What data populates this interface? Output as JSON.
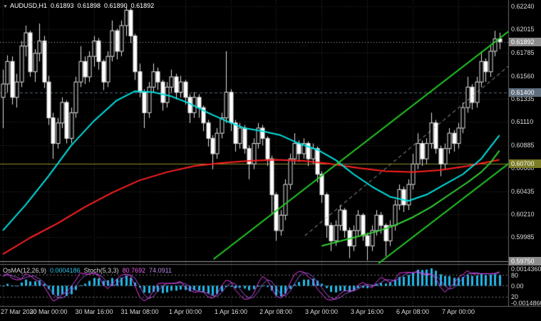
{
  "header": {
    "symbol": "AUDUSD,H1",
    "open": "0.61893",
    "high": "0.61898",
    "low": "0.61890",
    "close": "0.61892"
  },
  "indicator_header": {
    "osma_label": "OsMA(12,26,9)",
    "osma_value": "0.0004186",
    "stoch_label": "Stoch(5,3,3)",
    "stoch_k": "80.7692",
    "stoch_d": "74.0911"
  },
  "price_axis": {
    "ticks": [
      {
        "label": "0.62240",
        "price": 0.6224
      },
      {
        "label": "0.62015",
        "price": 0.62015
      },
      {
        "label": "0.61785",
        "price": 0.61785
      },
      {
        "label": "0.61560",
        "price": 0.6156
      },
      {
        "label": "0.61335",
        "price": 0.61335
      },
      {
        "label": "0.61110",
        "price": 0.6111
      },
      {
        "label": "0.60885",
        "price": 0.60885
      },
      {
        "label": "0.60660",
        "price": 0.6066
      },
      {
        "label": "0.60435",
        "price": 0.60435
      },
      {
        "label": "0.60210",
        "price": 0.6021
      },
      {
        "label": "0.59985",
        "price": 0.59985
      }
    ],
    "badges": [
      {
        "label": "0.61892",
        "price": 0.61892,
        "bg": "#8c8c8c"
      },
      {
        "label": "0.61400",
        "price": 0.614,
        "bg": "#5f6f7f"
      },
      {
        "label": "0.60700",
        "price": 0.607,
        "bg": "#7d7d28"
      },
      {
        "label": "0.59750",
        "price": 0.5975,
        "bg": "#8c8c8c"
      }
    ]
  },
  "indicator_axis": {
    "max": "0.0014360",
    "upper": "80",
    "zero": "0.00",
    "lower": "20",
    "min": "-0.0014860"
  },
  "time_axis": {
    "labels": [
      "27 Mar 2020",
      "30 Mar 00:00",
      "30 Mar 16:00",
      "31 Mar 08:00",
      "1 Apr 00:00",
      "1 Apr 16:00",
      "2 Apr 08:00",
      "3 Apr 00:00",
      "3 Apr 16:00",
      "6 Apr 08:00",
      "7 Apr 00:00"
    ]
  },
  "chart_data": {
    "type": "candlestick+oscillator",
    "symbol": "AUDUSD",
    "timeframe": "H1",
    "current_price": 0.61892,
    "price_range": [
      0.5973,
      0.623
    ],
    "label_every": 10,
    "osma_range": [
      -0.001486,
      0.001436
    ],
    "stoch_levels": [
      80,
      20
    ],
    "candles": [
      [
        0.6135,
        0.6162,
        0.6105,
        0.6148
      ],
      [
        0.6148,
        0.6176,
        0.614,
        0.617
      ],
      [
        0.617,
        0.6175,
        0.6128,
        0.6135
      ],
      [
        0.6135,
        0.6158,
        0.6125,
        0.615
      ],
      [
        0.615,
        0.619,
        0.6145,
        0.6185
      ],
      [
        0.6185,
        0.6205,
        0.6175,
        0.6198
      ],
      [
        0.6198,
        0.62,
        0.6155,
        0.616
      ],
      [
        0.616,
        0.6182,
        0.615,
        0.6178
      ],
      [
        0.6178,
        0.6207,
        0.617,
        0.619
      ],
      [
        0.619,
        0.6195,
        0.6144,
        0.615
      ],
      [
        0.615,
        0.6156,
        0.6108,
        0.6115
      ],
      [
        0.6115,
        0.612,
        0.6075,
        0.609
      ],
      [
        0.609,
        0.6115,
        0.6085,
        0.611
      ],
      [
        0.611,
        0.6135,
        0.6105,
        0.613
      ],
      [
        0.613,
        0.6132,
        0.609,
        0.6095
      ],
      [
        0.6095,
        0.6125,
        0.609,
        0.612
      ],
      [
        0.612,
        0.6155,
        0.6115,
        0.615
      ],
      [
        0.615,
        0.6185,
        0.6145,
        0.617
      ],
      [
        0.617,
        0.6175,
        0.6148,
        0.6155
      ],
      [
        0.6155,
        0.618,
        0.615,
        0.6175
      ],
      [
        0.6175,
        0.6195,
        0.6165,
        0.619
      ],
      [
        0.619,
        0.6193,
        0.6162,
        0.617
      ],
      [
        0.617,
        0.6172,
        0.6142,
        0.615
      ],
      [
        0.615,
        0.618,
        0.6145,
        0.6175
      ],
      [
        0.6175,
        0.621,
        0.617,
        0.62
      ],
      [
        0.62,
        0.6202,
        0.6172,
        0.618
      ],
      [
        0.618,
        0.621,
        0.6175,
        0.6205
      ],
      [
        0.6205,
        0.6224,
        0.6195,
        0.622
      ],
      [
        0.622,
        0.6222,
        0.6188,
        0.6195
      ],
      [
        0.6195,
        0.6197,
        0.6152,
        0.616
      ],
      [
        0.616,
        0.6168,
        0.6135,
        0.614
      ],
      [
        0.614,
        0.6143,
        0.6105,
        0.612
      ],
      [
        0.612,
        0.615,
        0.6115,
        0.6145
      ],
      [
        0.6145,
        0.6168,
        0.614,
        0.616
      ],
      [
        0.616,
        0.6164,
        0.6142,
        0.615
      ],
      [
        0.615,
        0.6152,
        0.6122,
        0.613
      ],
      [
        0.613,
        0.615,
        0.6125,
        0.6145
      ],
      [
        0.6145,
        0.6162,
        0.614,
        0.6155
      ],
      [
        0.6155,
        0.6158,
        0.6133,
        0.614
      ],
      [
        0.614,
        0.6156,
        0.6135,
        0.615
      ],
      [
        0.615,
        0.6152,
        0.6128,
        0.6135
      ],
      [
        0.6135,
        0.6138,
        0.611,
        0.612
      ],
      [
        0.612,
        0.614,
        0.6115,
        0.6135
      ],
      [
        0.6135,
        0.6138,
        0.6115,
        0.6125
      ],
      [
        0.6125,
        0.6127,
        0.6102,
        0.611
      ],
      [
        0.611,
        0.6113,
        0.6087,
        0.6095
      ],
      [
        0.6095,
        0.6098,
        0.6065,
        0.608
      ],
      [
        0.608,
        0.6105,
        0.6075,
        0.61
      ],
      [
        0.61,
        0.612,
        0.6095,
        0.6115
      ],
      [
        0.6115,
        0.618,
        0.611,
        0.614
      ],
      [
        0.614,
        0.6143,
        0.6102,
        0.611
      ],
      [
        0.611,
        0.6113,
        0.6082,
        0.609
      ],
      [
        0.609,
        0.611,
        0.6085,
        0.6105
      ],
      [
        0.6105,
        0.6108,
        0.608,
        0.6085
      ],
      [
        0.6085,
        0.6088,
        0.6055,
        0.607
      ],
      [
        0.607,
        0.6095,
        0.6065,
        0.609
      ],
      [
        0.609,
        0.611,
        0.6085,
        0.6105
      ],
      [
        0.6105,
        0.6108,
        0.6088,
        0.6095
      ],
      [
        0.6095,
        0.6097,
        0.6068,
        0.6075
      ],
      [
        0.6075,
        0.6078,
        0.602,
        0.604
      ],
      [
        0.604,
        0.6042,
        0.5995,
        0.6005
      ],
      [
        0.6005,
        0.6025,
        0.6,
        0.602
      ],
      [
        0.602,
        0.6055,
        0.6015,
        0.605
      ],
      [
        0.605,
        0.608,
        0.6045,
        0.6075
      ],
      [
        0.6075,
        0.61,
        0.607,
        0.609
      ],
      [
        0.609,
        0.6093,
        0.6072,
        0.608
      ],
      [
        0.608,
        0.6095,
        0.6075,
        0.609
      ],
      [
        0.609,
        0.6092,
        0.6068,
        0.6075
      ],
      [
        0.6075,
        0.609,
        0.607,
        0.6085
      ],
      [
        0.6085,
        0.6087,
        0.6052,
        0.606
      ],
      [
        0.606,
        0.6063,
        0.6032,
        0.604
      ],
      [
        0.604,
        0.6042,
        0.5998,
        0.601
      ],
      [
        0.601,
        0.6013,
        0.5985,
        0.5995
      ],
      [
        0.5995,
        0.6015,
        0.599,
        0.601
      ],
      [
        0.601,
        0.603,
        0.6005,
        0.6025
      ],
      [
        0.6025,
        0.6027,
        0.5998,
        0.6005
      ],
      [
        0.6005,
        0.6008,
        0.5978,
        0.599
      ],
      [
        0.599,
        0.601,
        0.5985,
        0.6005
      ],
      [
        0.6005,
        0.6025,
        0.6,
        0.602
      ],
      [
        0.602,
        0.6022,
        0.5995,
        0.6
      ],
      [
        0.6,
        0.6003,
        0.5976,
        0.599
      ],
      [
        0.599,
        0.601,
        0.5985,
        0.6005
      ],
      [
        0.6005,
        0.6025,
        0.6,
        0.602
      ],
      [
        0.602,
        0.6023,
        0.6002,
        0.601
      ],
      [
        0.601,
        0.6012,
        0.598,
        0.5995
      ],
      [
        0.5995,
        0.6015,
        0.599,
        0.601
      ],
      [
        0.601,
        0.6035,
        0.6005,
        0.603
      ],
      [
        0.603,
        0.605,
        0.6025,
        0.6045
      ],
      [
        0.6045,
        0.6048,
        0.6023,
        0.603
      ],
      [
        0.603,
        0.6055,
        0.6025,
        0.605
      ],
      [
        0.605,
        0.608,
        0.6045,
        0.607
      ],
      [
        0.607,
        0.61,
        0.6065,
        0.609
      ],
      [
        0.609,
        0.6093,
        0.6068,
        0.6075
      ],
      [
        0.6075,
        0.6095,
        0.607,
        0.609
      ],
      [
        0.609,
        0.612,
        0.6085,
        0.611
      ],
      [
        0.611,
        0.6113,
        0.608,
        0.6085
      ],
      [
        0.6085,
        0.6088,
        0.6058,
        0.607
      ],
      [
        0.607,
        0.609,
        0.6065,
        0.6085
      ],
      [
        0.6085,
        0.6105,
        0.608,
        0.61
      ],
      [
        0.61,
        0.6103,
        0.6082,
        0.609
      ],
      [
        0.609,
        0.611,
        0.6085,
        0.6105
      ],
      [
        0.6105,
        0.613,
        0.61,
        0.6125
      ],
      [
        0.6125,
        0.6155,
        0.612,
        0.6145
      ],
      [
        0.6145,
        0.6148,
        0.6123,
        0.613
      ],
      [
        0.613,
        0.6155,
        0.6125,
        0.615
      ],
      [
        0.615,
        0.618,
        0.6145,
        0.617
      ],
      [
        0.617,
        0.6173,
        0.615,
        0.616
      ],
      [
        0.616,
        0.6185,
        0.6155,
        0.618
      ],
      [
        0.618,
        0.62,
        0.6175,
        0.6192
      ],
      [
        0.6192,
        0.6198,
        0.6182,
        0.61892
      ]
    ],
    "ma_cyan": [
      [
        0,
        0.6005
      ],
      [
        5,
        0.603
      ],
      [
        10,
        0.6058
      ],
      [
        15,
        0.6088
      ],
      [
        20,
        0.6112
      ],
      [
        25,
        0.6132
      ],
      [
        29,
        0.6141
      ],
      [
        33,
        0.614
      ],
      [
        37,
        0.6136
      ],
      [
        41,
        0.6129
      ],
      [
        45,
        0.612
      ],
      [
        49,
        0.6112
      ],
      [
        53,
        0.6105
      ],
      [
        57,
        0.6102
      ],
      [
        61,
        0.6098
      ],
      [
        65,
        0.609
      ],
      [
        69,
        0.6084
      ],
      [
        73,
        0.6074
      ],
      [
        77,
        0.606
      ],
      [
        81,
        0.6048
      ],
      [
        85,
        0.6038
      ],
      [
        89,
        0.6034
      ],
      [
        93,
        0.604
      ],
      [
        97,
        0.605
      ],
      [
        101,
        0.606
      ],
      [
        105,
        0.6075
      ],
      [
        109,
        0.6098
      ]
    ],
    "ma_red": [
      [
        0,
        0.5982
      ],
      [
        6,
        0.5998
      ],
      [
        12,
        0.6012
      ],
      [
        18,
        0.6028
      ],
      [
        24,
        0.6042
      ],
      [
        30,
        0.6054
      ],
      [
        36,
        0.6062
      ],
      [
        42,
        0.6068
      ],
      [
        48,
        0.6071
      ],
      [
        54,
        0.6073
      ],
      [
        60,
        0.6074
      ],
      [
        66,
        0.6073
      ],
      [
        72,
        0.607
      ],
      [
        78,
        0.6066
      ],
      [
        84,
        0.6063
      ],
      [
        90,
        0.6062
      ],
      [
        96,
        0.6064
      ],
      [
        102,
        0.6068
      ],
      [
        109,
        0.6074
      ]
    ],
    "ma_green": [
      [
        70,
        0.599
      ],
      [
        76,
        0.5997
      ],
      [
        82,
        0.6004
      ],
      [
        86,
        0.601
      ],
      [
        90,
        0.6018
      ],
      [
        94,
        0.6028
      ],
      [
        98,
        0.604
      ],
      [
        102,
        0.6052
      ],
      [
        105,
        0.6062
      ],
      [
        107,
        0.6071
      ],
      [
        109,
        0.6083
      ]
    ],
    "trend_lines": [
      {
        "x1": 0.42,
        "p1": 0.5977,
        "x2": 1.06,
        "p2": 0.6222,
        "color": "#22cc22",
        "width": 2,
        "dash": false
      },
      {
        "x1": 0.745,
        "p1": 0.5973,
        "x2": 1.06,
        "p2": 0.6093,
        "color": "#22cc22",
        "width": 2,
        "dash": false
      },
      {
        "x1": 0.6,
        "p1": 0.6,
        "x2": 1.06,
        "p2": 0.619,
        "color": "#b0b0b0",
        "width": 1,
        "dash": true
      }
    ],
    "h_levels": [
      {
        "price": 0.614,
        "color": "#546878",
        "dash": true
      },
      {
        "price": 0.607,
        "color": "#8f8f2a",
        "dash": false
      },
      {
        "price": 0.5975,
        "color": "#9c9c9c",
        "dash": false
      }
    ],
    "colors": {
      "background": "#000000",
      "grid": "#333333",
      "candle_outline": "#e0e0e0",
      "bull_fill": "#000000",
      "bear_fill": "#ffffff",
      "ma_cyan": "#00e0e0",
      "ma_red": "#ff2020",
      "ma_green": "#30d030",
      "osma": "#22b8e8",
      "stoch_main": "#ef3eef",
      "stoch_signal": "#9a5ade",
      "current_price_line": "#bbbbbb",
      "separator": "#6a6a6a",
      "panel_level": "#787878"
    }
  }
}
